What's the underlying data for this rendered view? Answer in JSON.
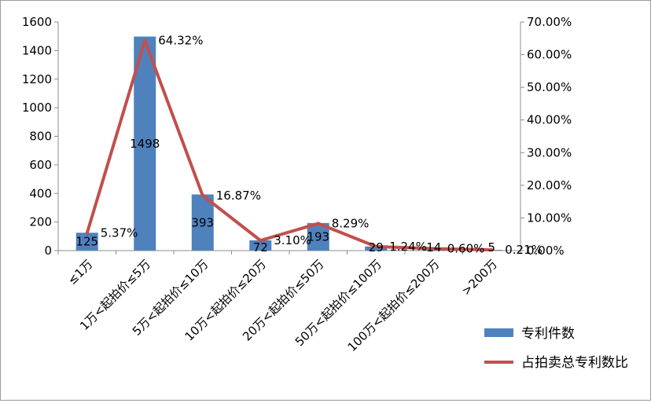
{
  "chart_data": {
    "type": "bar",
    "categories": [
      "≤1万",
      "1万<起拍价≤5万",
      "5万<起拍价≤10万",
      "10万<起拍价≤20万",
      "20万<起拍价≤50万",
      "50万<起拍价≤100万",
      "100万<起拍价≤200万",
      ">200万"
    ],
    "series": [
      {
        "name": "专利件数",
        "type": "bar",
        "axis": "left",
        "color": "#4f81bd",
        "values": [
          125,
          1498,
          393,
          72,
          193,
          29,
          14,
          5
        ],
        "value_labels": [
          "125",
          "1498",
          "393",
          "72",
          "193",
          "29",
          "14",
          "5"
        ]
      },
      {
        "name": "占拍卖总专利数比",
        "type": "line",
        "axis": "right",
        "color": "#c0504d",
        "values": [
          5.37,
          64.32,
          16.87,
          3.1,
          8.29,
          1.24,
          0.6,
          0.21
        ],
        "value_labels": [
          "5.37%",
          "64.32%",
          "16.87%",
          "3.10%",
          "8.29%",
          "1.24%",
          "0.60%",
          "0.21%"
        ]
      }
    ],
    "y_left": {
      "ylim": [
        0,
        1600
      ],
      "ticks": [
        0,
        200,
        400,
        600,
        800,
        1000,
        1200,
        1400,
        1600
      ],
      "tick_labels": [
        "0",
        "200",
        "400",
        "600",
        "800",
        "1000",
        "1200",
        "1400",
        "1600"
      ]
    },
    "y_right": {
      "ylim": [
        0,
        70
      ],
      "ticks": [
        0,
        10,
        20,
        30,
        40,
        50,
        60,
        70
      ],
      "tick_labels": [
        "0.00%",
        "10.00%",
        "20.00%",
        "30.00%",
        "40.00%",
        "50.00%",
        "60.00%",
        "70.00%"
      ]
    },
    "title": "",
    "xlabel": "",
    "grid": false,
    "legend_position": "bottom-right"
  }
}
